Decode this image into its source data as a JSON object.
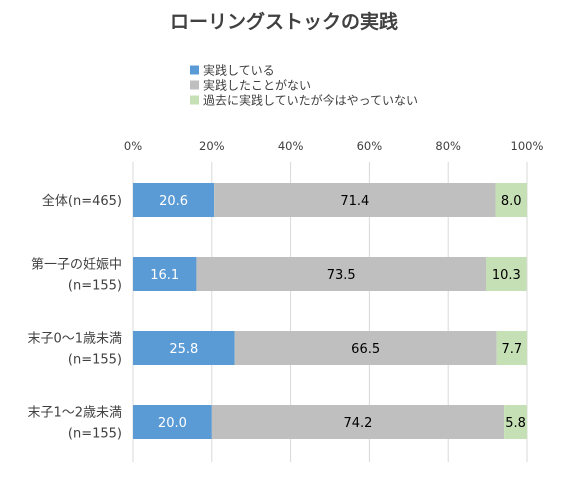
{
  "chart_data": {
    "type": "bar",
    "orientation": "horizontal",
    "stacked": true,
    "normalized": true,
    "title": "ローリングストックの実践",
    "legend_position": "top",
    "grid": false,
    "xlim": [
      0,
      100
    ],
    "x_ticks": [
      "0%",
      "20%",
      "40%",
      "60%",
      "80%",
      "100%"
    ],
    "categories": [
      [
        "全体(n=465)"
      ],
      [
        "第一子の妊娠中",
        "(n=155)"
      ],
      [
        "末子0～1歳未満",
        "(n=155)"
      ],
      [
        "末子1～2歳未満",
        "(n=155)"
      ]
    ],
    "series": [
      {
        "name": "実践している",
        "color": "#5b9bd5",
        "label_color": "#ffffff",
        "values": [
          20.6,
          16.1,
          25.8,
          20.0
        ]
      },
      {
        "name": "実践したことがない",
        "color": "#bfbfbf",
        "label_color": "#000000",
        "values": [
          71.4,
          73.5,
          66.5,
          74.2
        ]
      },
      {
        "name": "過去に実践していたが今はやっていない",
        "color": "#c5e0b4",
        "label_color": "#000000",
        "values": [
          8.0,
          10.3,
          7.7,
          5.8
        ]
      }
    ]
  }
}
